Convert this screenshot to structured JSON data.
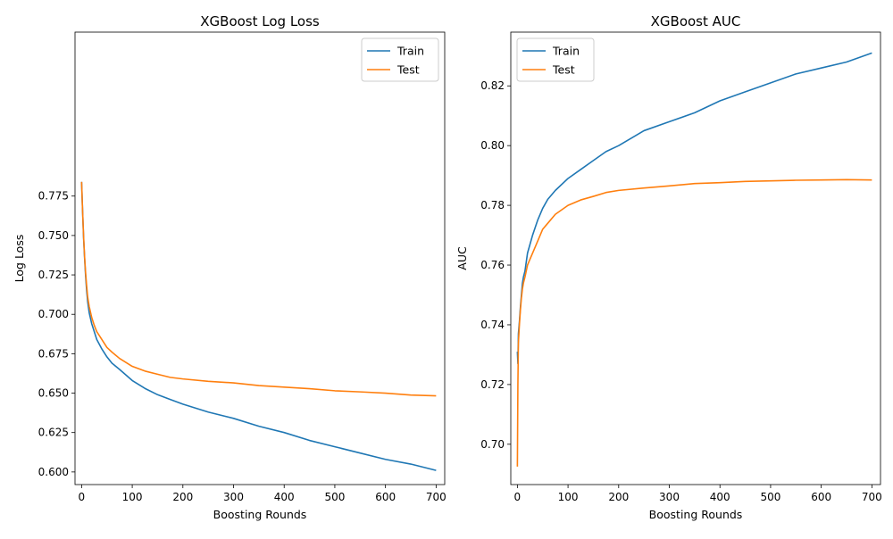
{
  "chart_data": [
    {
      "type": "line",
      "title": "XGBoost Log Loss",
      "xlabel": "Boosting Rounds",
      "ylabel": "Log Loss",
      "xlim": [
        -13,
        717
      ],
      "ylim": [
        0.592,
        0.879
      ],
      "xticks": [
        0,
        100,
        200,
        300,
        400,
        500,
        600,
        700
      ],
      "yticks": [
        0.6,
        0.625,
        0.65,
        0.675,
        0.7,
        0.725,
        0.75,
        0.775
      ],
      "ytick_labels": [
        "0.600",
        "0.625",
        "0.650",
        "0.675",
        "0.700",
        "0.725",
        "0.750",
        "0.775"
      ],
      "legend_position": "top-right",
      "series": [
        {
          "name": "Train",
          "color": "#1f77b4",
          "x": [
            0,
            2,
            4,
            6,
            8,
            10,
            12,
            15,
            20,
            25,
            30,
            40,
            50,
            60,
            75,
            100,
            125,
            150,
            175,
            200,
            250,
            300,
            350,
            400,
            450,
            500,
            550,
            600,
            650,
            700
          ],
          "y": [
            0.784,
            0.765,
            0.748,
            0.735,
            0.724,
            0.715,
            0.708,
            0.701,
            0.694,
            0.689,
            0.684,
            0.678,
            0.673,
            0.669,
            0.665,
            0.658,
            0.653,
            0.649,
            0.646,
            0.643,
            0.638,
            0.634,
            0.629,
            0.625,
            0.62,
            0.616,
            0.612,
            0.608,
            0.605,
            0.601
          ]
        },
        {
          "name": "Test",
          "color": "#ff7f0e",
          "x": [
            0,
            2,
            4,
            6,
            8,
            10,
            12,
            15,
            20,
            25,
            30,
            40,
            50,
            60,
            75,
            100,
            125,
            150,
            175,
            200,
            250,
            300,
            350,
            400,
            450,
            500,
            550,
            600,
            650,
            700
          ],
          "y": [
            0.784,
            0.765,
            0.749,
            0.736,
            0.726,
            0.718,
            0.711,
            0.705,
            0.698,
            0.693,
            0.689,
            0.684,
            0.679,
            0.676,
            0.672,
            0.667,
            0.664,
            0.662,
            0.66,
            0.659,
            0.6575,
            0.6565,
            0.6548,
            0.6538,
            0.6528,
            0.6515,
            0.6508,
            0.65,
            0.6488,
            0.6483
          ]
        }
      ]
    },
    {
      "type": "line",
      "title": "XGBoost AUC",
      "xlabel": "Boosting Rounds",
      "ylabel": "AUC",
      "xlim": [
        -13,
        717
      ],
      "ylim": [
        0.6865,
        0.838
      ],
      "xticks": [
        0,
        100,
        200,
        300,
        400,
        500,
        600,
        700
      ],
      "yticks": [
        0.7,
        0.72,
        0.74,
        0.76,
        0.78,
        0.8,
        0.82
      ],
      "ytick_labels": [
        "0.70",
        "0.72",
        "0.74",
        "0.76",
        "0.78",
        "0.80",
        "0.82"
      ],
      "legend_position": "top-left",
      "series": [
        {
          "name": "Train",
          "color": "#1f77b4",
          "x": [
            0,
            1,
            2,
            4,
            6,
            8,
            10,
            12,
            15,
            20,
            25,
            30,
            40,
            50,
            60,
            75,
            100,
            125,
            150,
            175,
            200,
            250,
            300,
            350,
            400,
            450,
            500,
            550,
            600,
            650,
            700
          ],
          "y": [
            0.731,
            0.727,
            0.737,
            0.741,
            0.746,
            0.75,
            0.754,
            0.756,
            0.758,
            0.764,
            0.767,
            0.77,
            0.775,
            0.779,
            0.782,
            0.785,
            0.789,
            0.792,
            0.795,
            0.798,
            0.8,
            0.805,
            0.808,
            0.811,
            0.815,
            0.818,
            0.821,
            0.824,
            0.826,
            0.828,
            0.831
          ]
        },
        {
          "name": "Test",
          "color": "#ff7f0e",
          "x": [
            0,
            1,
            2,
            4,
            6,
            8,
            10,
            12,
            15,
            20,
            25,
            30,
            40,
            50,
            60,
            75,
            100,
            125,
            150,
            175,
            200,
            250,
            300,
            350,
            400,
            450,
            500,
            550,
            600,
            650,
            700
          ],
          "y": [
            0.6925,
            0.72,
            0.734,
            0.74,
            0.745,
            0.749,
            0.752,
            0.754,
            0.756,
            0.76,
            0.762,
            0.764,
            0.768,
            0.772,
            0.774,
            0.777,
            0.78,
            0.7818,
            0.783,
            0.7843,
            0.785,
            0.7858,
            0.7865,
            0.7873,
            0.7876,
            0.788,
            0.7882,
            0.7884,
            0.7885,
            0.7886,
            0.7885
          ]
        }
      ]
    }
  ]
}
